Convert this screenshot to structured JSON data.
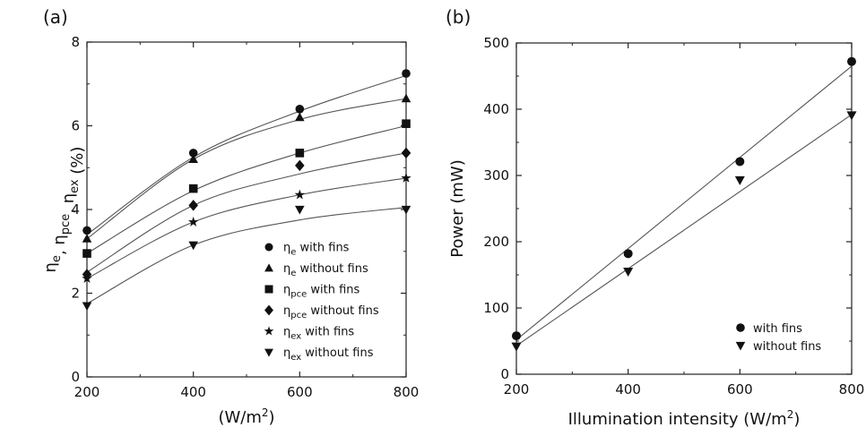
{
  "chart_data": [
    {
      "panel": "(a)",
      "type": "scatter",
      "xlabel": "(W/m2)",
      "xlabel_main": "(W/m",
      "xlabel_sup": "2",
      "xlabel_close": ")",
      "ylabel_parts": [
        {
          "t": "η",
          "sub": "e"
        },
        {
          "t": ", η",
          "sub": "pce"
        },
        {
          "t": ", η",
          "sub": "ex"
        },
        {
          "t": " (%)",
          "sub": ""
        }
      ],
      "xlim": [
        200,
        800
      ],
      "ylim": [
        0,
        8
      ],
      "xticks": [
        "200",
        "400",
        "600",
        "800"
      ],
      "yticks": [
        "0",
        "2",
        "4",
        "6",
        "8"
      ],
      "legend_position": "bottom-right",
      "series": [
        {
          "name": "ηe with fins",
          "sym": "η",
          "sub": "e",
          "rest": " with fins",
          "marker": "circle",
          "x": [
            200,
            400,
            600,
            800
          ],
          "values": [
            3.5,
            5.35,
            6.4,
            7.25
          ],
          "fit": [
            3.4,
            5.25,
            6.35,
            7.2
          ]
        },
        {
          "name": "ηe without fins",
          "sym": "η",
          "sub": "e",
          "rest": " without fins",
          "marker": "triangle-up",
          "x": [
            200,
            400,
            600,
            800
          ],
          "values": [
            3.3,
            5.2,
            6.2,
            6.65
          ],
          "fit": [
            3.3,
            5.2,
            6.15,
            6.65
          ]
        },
        {
          "name": "ηpce with fins",
          "sym": "η",
          "sub": "pce",
          "rest": " with fins",
          "marker": "square",
          "x": [
            200,
            400,
            600,
            800
          ],
          "values": [
            2.95,
            4.5,
            5.35,
            6.05
          ],
          "fit": [
            2.95,
            4.45,
            5.35,
            6.0
          ]
        },
        {
          "name": "ηpce without fins",
          "sym": "η",
          "sub": "pce",
          "rest": " without fins",
          "marker": "diamond",
          "x": [
            200,
            400,
            600,
            800
          ],
          "values": [
            2.45,
            4.1,
            5.05,
            5.35
          ],
          "fit": [
            2.5,
            4.1,
            4.85,
            5.35
          ]
        },
        {
          "name": "ηex with fins",
          "sym": "η",
          "sub": "ex",
          "rest": " with fins",
          "marker": "star",
          "x": [
            200,
            400,
            600,
            800
          ],
          "values": [
            2.35,
            3.7,
            4.35,
            4.75
          ],
          "fit": [
            2.35,
            3.7,
            4.35,
            4.75
          ]
        },
        {
          "name": "ηex without fins",
          "sym": "η",
          "sub": "ex",
          "rest": " without fins",
          "marker": "triangle-down",
          "x": [
            200,
            400,
            600,
            800
          ],
          "values": [
            1.7,
            3.15,
            4.0,
            4.0
          ],
          "fit": [
            1.75,
            3.15,
            3.75,
            4.05
          ]
        }
      ]
    },
    {
      "panel": "(b)",
      "type": "scatter",
      "xlabel": "Illumination intensity (W/m2)",
      "xlabel_main": "Illumination intensity (W/m",
      "xlabel_sup": "2",
      "xlabel_close": ")",
      "ylabel": "Power (mW)",
      "xlim": [
        200,
        800
      ],
      "ylim": [
        0,
        500
      ],
      "xticks": [
        "200",
        "400",
        "600",
        "800"
      ],
      "yticks": [
        "0",
        "100",
        "200",
        "300",
        "400",
        "500"
      ],
      "legend_position": "bottom-right",
      "series": [
        {
          "name": "with fins",
          "marker": "circle",
          "x": [
            200,
            400,
            600,
            800
          ],
          "values": [
            58,
            182,
            321,
            472
          ],
          "fit_line": [
            [
              200,
              52
            ],
            [
              800,
              465
            ]
          ]
        },
        {
          "name": "without fins",
          "marker": "triangle-down",
          "x": [
            200,
            400,
            600,
            800
          ],
          "values": [
            42,
            155,
            293,
            391
          ],
          "fit_line": [
            [
              200,
              43
            ],
            [
              800,
              392
            ]
          ]
        }
      ]
    }
  ]
}
